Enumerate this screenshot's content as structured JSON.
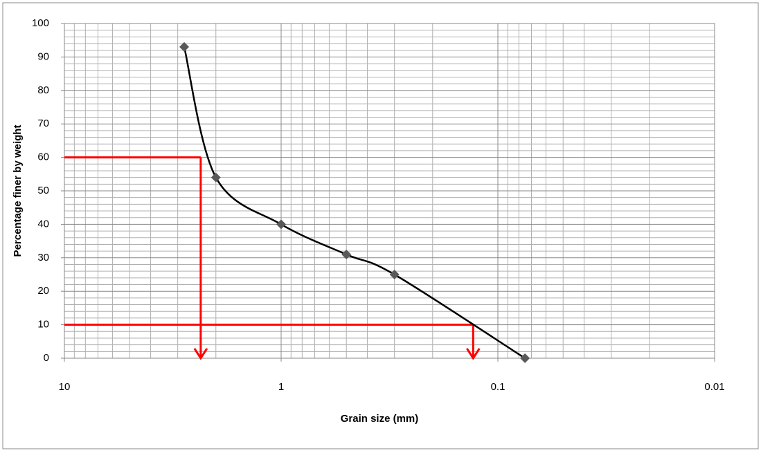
{
  "chart_data": {
    "type": "line",
    "xlabel": "Grain size (mm)",
    "ylabel": "Percentage finer by weight",
    "xscale": "log",
    "xlim": [
      10,
      0.01
    ],
    "xticks": [
      10,
      1,
      0.1,
      0.01
    ],
    "ylim": [
      0,
      100
    ],
    "yticks": [
      0,
      10,
      20,
      30,
      40,
      50,
      60,
      70,
      80,
      90,
      100
    ],
    "grid": true,
    "minor_grid": true,
    "series": [
      {
        "color": "#000000",
        "marker_color": "#595959",
        "x": [
          2.8,
          2.0,
          1.0,
          0.5,
          0.3,
          0.075
        ],
        "values": [
          93,
          54,
          40,
          31,
          25,
          0
        ]
      }
    ],
    "reference_lines": {
      "color": "#ff0000",
      "y": [
        60,
        10
      ],
      "x": [
        2.35,
        0.13
      ]
    }
  }
}
